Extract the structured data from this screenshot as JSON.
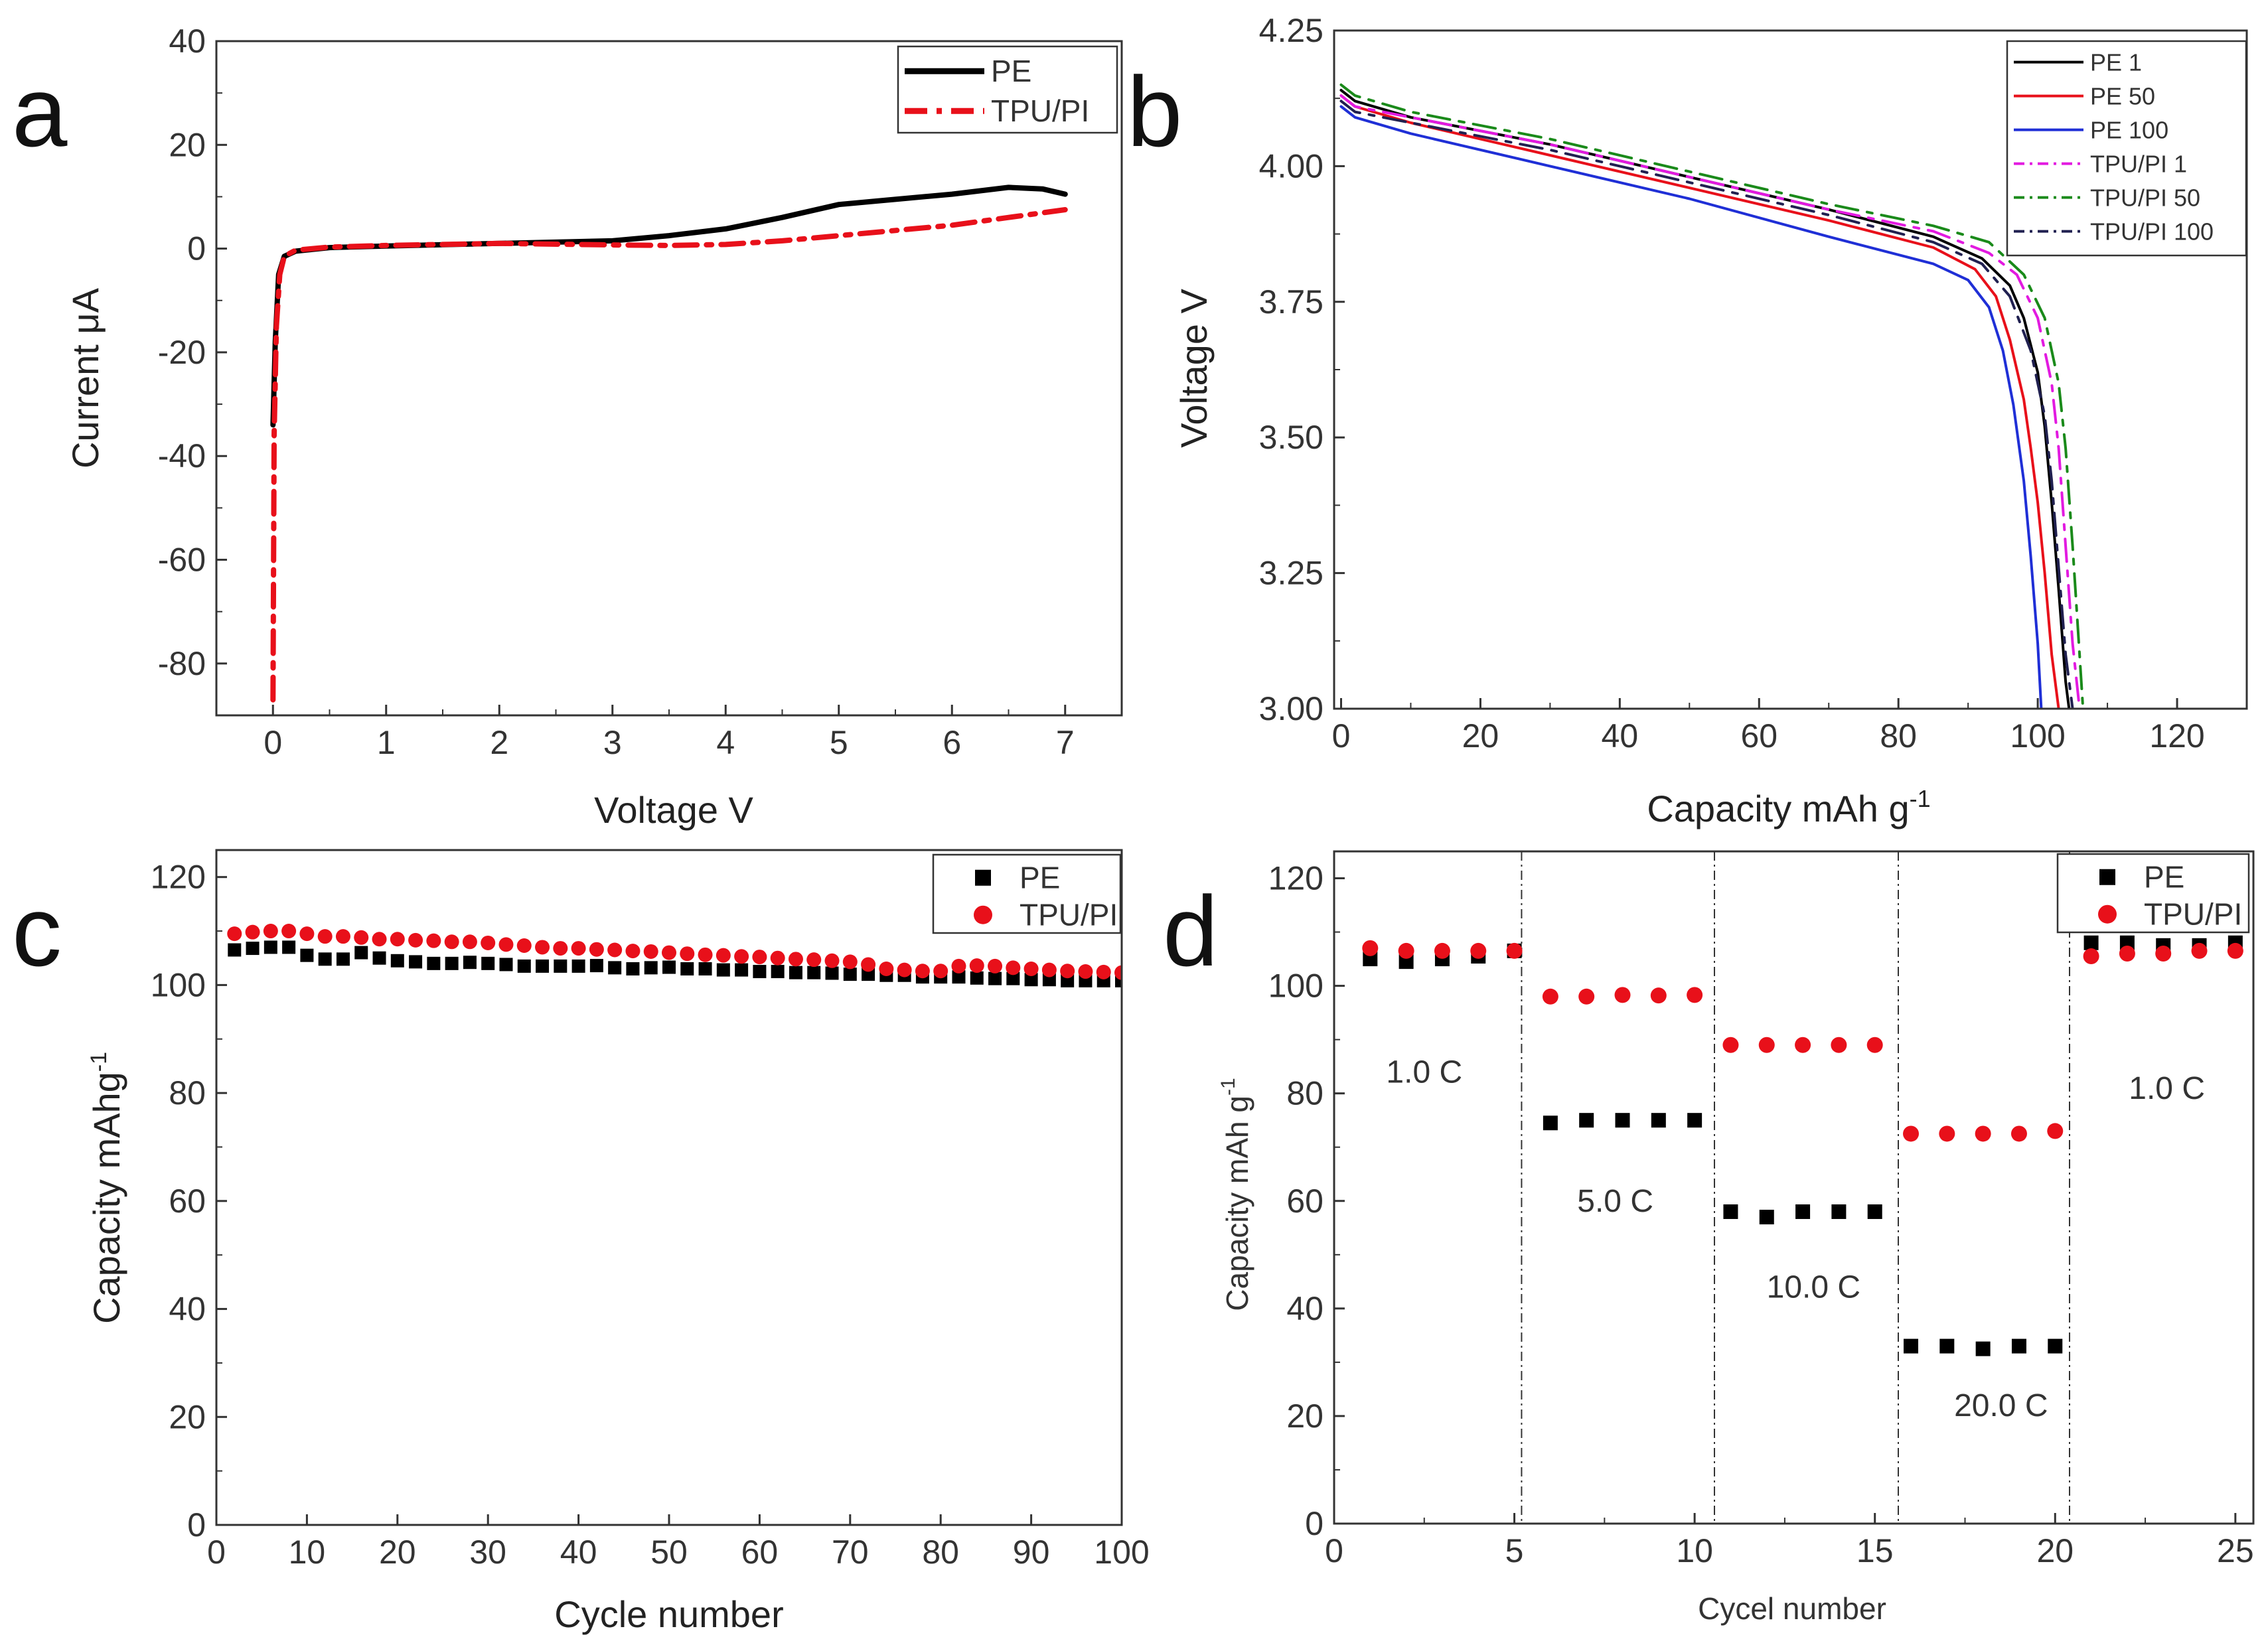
{
  "colors": {
    "pe": "#000000",
    "tpupi": "#e8101a",
    "pe50": "#e8101a",
    "pe100": "#1f2fd6",
    "tpupi1": "#e21ae0",
    "tpupi50": "#1a8a1a",
    "tpupi100": "#202050"
  },
  "chart_data": [
    {
      "panel": "a",
      "type": "line",
      "xlabel": "Voltage V",
      "ylabel": "Current μA",
      "xlim": [
        -0.5,
        7.5
      ],
      "ylim": [
        -90,
        40
      ],
      "xticks": [
        0,
        1,
        2,
        3,
        4,
        5,
        6,
        7
      ],
      "yticks": [
        -80,
        -60,
        -40,
        -20,
        0,
        20,
        40
      ],
      "legend_position": "top-right",
      "series": [
        {
          "name": "PE",
          "style": "solid",
          "color": "#000000",
          "x": [
            0,
            0.02,
            0.05,
            0.1,
            0.2,
            0.5,
            1,
            2,
            3,
            3.5,
            4,
            4.5,
            5,
            5.5,
            6,
            6.5,
            6.8,
            7
          ],
          "y": [
            -34,
            -18,
            -5,
            -1.5,
            -0.5,
            0.2,
            0.5,
            1,
            1.5,
            2.5,
            3.8,
            6,
            8.5,
            9.5,
            10.5,
            11.8,
            11.5,
            10.5
          ]
        },
        {
          "name": "TPU/PI",
          "style": "dashdot",
          "color": "#e8101a",
          "x": [
            0,
            0.01,
            0.03,
            0.06,
            0.1,
            0.2,
            0.5,
            1,
            2,
            3,
            3.5,
            4,
            4.5,
            5,
            5.5,
            6,
            6.5,
            7
          ],
          "y": [
            -87,
            -36,
            -15,
            -5,
            -1.5,
            -0.3,
            0.3,
            0.6,
            1,
            0.7,
            0.6,
            0.8,
            1.5,
            2.5,
            3.5,
            4.5,
            6,
            7.5
          ]
        }
      ]
    },
    {
      "panel": "b",
      "type": "line",
      "xlabel": "Capacity mAh g",
      "xlabel_sup": "-1",
      "ylabel": "Voltage V",
      "xlim": [
        -1,
        130
      ],
      "ylim": [
        3.0,
        4.25
      ],
      "xticks": [
        0,
        20,
        40,
        60,
        80,
        100,
        120
      ],
      "yticks": [
        "3.00",
        "3.25",
        "3.50",
        "3.75",
        "4.00",
        "4.25"
      ],
      "legend_position": "top-right",
      "series": [
        {
          "name": "PE 1",
          "style": "solid",
          "color": "#000000",
          "x": [
            0,
            2,
            10,
            30,
            50,
            70,
            85,
            92,
            96,
            98,
            100,
            101,
            102,
            103,
            104,
            104.5
          ],
          "y": [
            4.14,
            4.12,
            4.09,
            4.04,
            3.98,
            3.92,
            3.87,
            3.83,
            3.78,
            3.72,
            3.62,
            3.52,
            3.38,
            3.22,
            3.05,
            3.0
          ]
        },
        {
          "name": "PE 50",
          "style": "solid",
          "color": "#e8101a",
          "x": [
            0,
            2,
            10,
            30,
            50,
            70,
            85,
            91,
            94,
            96,
            98,
            99,
            100,
            101,
            102,
            103
          ],
          "y": [
            4.13,
            4.11,
            4.08,
            4.02,
            3.96,
            3.9,
            3.85,
            3.81,
            3.76,
            3.68,
            3.57,
            3.48,
            3.38,
            3.25,
            3.1,
            3.0
          ]
        },
        {
          "name": "PE 100",
          "style": "solid",
          "color": "#1f2fd6",
          "x": [
            0,
            2,
            10,
            30,
            50,
            70,
            85,
            90,
            93,
            95,
            96.5,
            98,
            99,
            100,
            100.5
          ],
          "y": [
            4.11,
            4.09,
            4.06,
            4.0,
            3.94,
            3.87,
            3.82,
            3.79,
            3.74,
            3.66,
            3.56,
            3.42,
            3.28,
            3.12,
            3.0
          ]
        },
        {
          "name": "TPU/PI 1",
          "style": "dashdot",
          "color": "#e21ae0",
          "x": [
            0,
            2,
            10,
            30,
            50,
            70,
            85,
            93,
            97,
            100,
            102,
            103,
            104,
            105,
            106
          ],
          "y": [
            4.13,
            4.11,
            4.09,
            4.04,
            3.98,
            3.92,
            3.88,
            3.84,
            3.8,
            3.72,
            3.6,
            3.48,
            3.3,
            3.12,
            3.0
          ]
        },
        {
          "name": "TPU/PI 50",
          "style": "dashdot",
          "color": "#1a8a1a",
          "x": [
            0,
            2,
            10,
            30,
            50,
            70,
            85,
            93,
            98,
            101,
            103,
            104,
            105,
            106,
            106.5
          ],
          "y": [
            4.15,
            4.13,
            4.1,
            4.05,
            3.99,
            3.93,
            3.89,
            3.86,
            3.8,
            3.72,
            3.6,
            3.48,
            3.3,
            3.1,
            3.0
          ]
        },
        {
          "name": "TPU/PI 100",
          "style": "dashdot",
          "color": "#202050",
          "x": [
            0,
            2,
            10,
            30,
            50,
            70,
            85,
            92,
            96,
            99,
            101,
            102,
            103,
            104,
            105
          ],
          "y": [
            4.12,
            4.1,
            4.08,
            4.03,
            3.97,
            3.91,
            3.86,
            3.82,
            3.76,
            3.66,
            3.54,
            3.42,
            3.26,
            3.1,
            3.0
          ]
        }
      ]
    },
    {
      "panel": "c",
      "type": "scatter",
      "xlabel": "Cycle number",
      "ylabel": "Capacity mAhg",
      "ylabel_sup": "-1",
      "xlim": [
        0,
        100
      ],
      "ylim": [
        0,
        125
      ],
      "xticks": [
        0,
        10,
        20,
        30,
        40,
        50,
        60,
        70,
        80,
        90,
        100
      ],
      "yticks": [
        0,
        20,
        40,
        60,
        80,
        100,
        120
      ],
      "legend_position": "top-right",
      "series": [
        {
          "name": "PE",
          "marker": "square",
          "color": "#000000",
          "x": [
            2,
            4,
            6,
            8,
            10,
            12,
            14,
            16,
            18,
            20,
            22,
            24,
            26,
            28,
            30,
            32,
            34,
            36,
            38,
            40,
            42,
            44,
            46,
            48,
            50,
            52,
            54,
            56,
            58,
            60,
            62,
            64,
            66,
            68,
            70,
            72,
            74,
            76,
            78,
            80,
            82,
            84,
            86,
            88,
            90,
            92,
            94,
            96,
            98,
            100
          ],
          "y": [
            106.5,
            106.8,
            107,
            107,
            105.5,
            104.8,
            104.8,
            106,
            105,
            104.5,
            104.3,
            104,
            104,
            104.2,
            104,
            103.8,
            103.5,
            103.5,
            103.5,
            103.5,
            103.6,
            103.2,
            103,
            103.2,
            103.3,
            103,
            103,
            102.8,
            102.8,
            102.5,
            102.5,
            102.3,
            102.3,
            102.2,
            102,
            102,
            101.8,
            101.8,
            101.5,
            101.5,
            101.5,
            101.3,
            101.2,
            101.2,
            101,
            101,
            100.8,
            100.8,
            100.8,
            100.8
          ]
        },
        {
          "name": "TPU/PI",
          "marker": "circle",
          "color": "#e8101a",
          "x": [
            2,
            4,
            6,
            8,
            10,
            12,
            14,
            16,
            18,
            20,
            22,
            24,
            26,
            28,
            30,
            32,
            34,
            36,
            38,
            40,
            42,
            44,
            46,
            48,
            50,
            52,
            54,
            56,
            58,
            60,
            62,
            64,
            66,
            68,
            70,
            72,
            74,
            76,
            78,
            80,
            82,
            84,
            86,
            88,
            90,
            92,
            94,
            96,
            98,
            100
          ],
          "y": [
            109.5,
            109.8,
            110,
            110,
            109.5,
            109,
            109,
            108.8,
            108.5,
            108.5,
            108.3,
            108.2,
            108,
            108,
            107.8,
            107.5,
            107.3,
            107,
            106.8,
            106.8,
            106.6,
            106.5,
            106.3,
            106.2,
            106,
            105.8,
            105.6,
            105.5,
            105.3,
            105.2,
            105,
            104.8,
            104.7,
            104.5,
            104.3,
            103.8,
            103,
            102.8,
            102.6,
            102.6,
            103.5,
            103.6,
            103.5,
            103.2,
            103,
            102.8,
            102.6,
            102.5,
            102.4,
            102.3
          ]
        }
      ]
    },
    {
      "panel": "d",
      "type": "scatter",
      "xlabel": "Cycel number",
      "ylabel": "Capacity mAh g",
      "ylabel_sup": "-1",
      "xlim": [
        0,
        25.5
      ],
      "ylim": [
        0,
        125
      ],
      "xticks": [
        0,
        5,
        10,
        15,
        20,
        25
      ],
      "yticks": [
        0,
        20,
        40,
        60,
        80,
        100,
        120
      ],
      "legend_position": "top-right",
      "separators": [
        5.2,
        10.55,
        15.65,
        20.4
      ],
      "rate_labels": [
        {
          "text": "1.0 C",
          "x": 2.5,
          "y": 82
        },
        {
          "text": "5.0 C",
          "x": 7.8,
          "y": 58
        },
        {
          "text": "10.0 C",
          "x": 13.3,
          "y": 42
        },
        {
          "text": "20.0 C",
          "x": 18.5,
          "y": 20
        },
        {
          "text": "1.0 C",
          "x": 23.1,
          "y": 79
        }
      ],
      "series": [
        {
          "name": "PE",
          "marker": "square",
          "color": "#000000",
          "x": [
            1,
            2,
            3,
            4,
            5,
            6,
            7,
            8,
            9,
            10,
            11,
            12,
            13,
            14,
            15,
            16,
            17,
            18,
            19,
            20,
            21,
            22,
            23,
            24,
            25
          ],
          "y": [
            105,
            104.5,
            105,
            105.5,
            106.5,
            74.5,
            75,
            75,
            75,
            75,
            58,
            57,
            58,
            58,
            58,
            33,
            33,
            32.5,
            33,
            33,
            108,
            108,
            107.5,
            107.5,
            108
          ]
        },
        {
          "name": "TPU/PI",
          "marker": "circle",
          "color": "#e8101a",
          "x": [
            1,
            2,
            3,
            4,
            5,
            6,
            7,
            8,
            9,
            10,
            11,
            12,
            13,
            14,
            15,
            16,
            17,
            18,
            19,
            20,
            21,
            22,
            23,
            24,
            25
          ],
          "y": [
            107,
            106.5,
            106.5,
            106.5,
            106.5,
            98,
            98,
            98.3,
            98.2,
            98.3,
            89,
            89,
            89,
            89,
            89,
            72.5,
            72.5,
            72.5,
            72.5,
            73,
            105.5,
            106,
            106,
            106.5,
            106.5
          ]
        }
      ]
    }
  ]
}
